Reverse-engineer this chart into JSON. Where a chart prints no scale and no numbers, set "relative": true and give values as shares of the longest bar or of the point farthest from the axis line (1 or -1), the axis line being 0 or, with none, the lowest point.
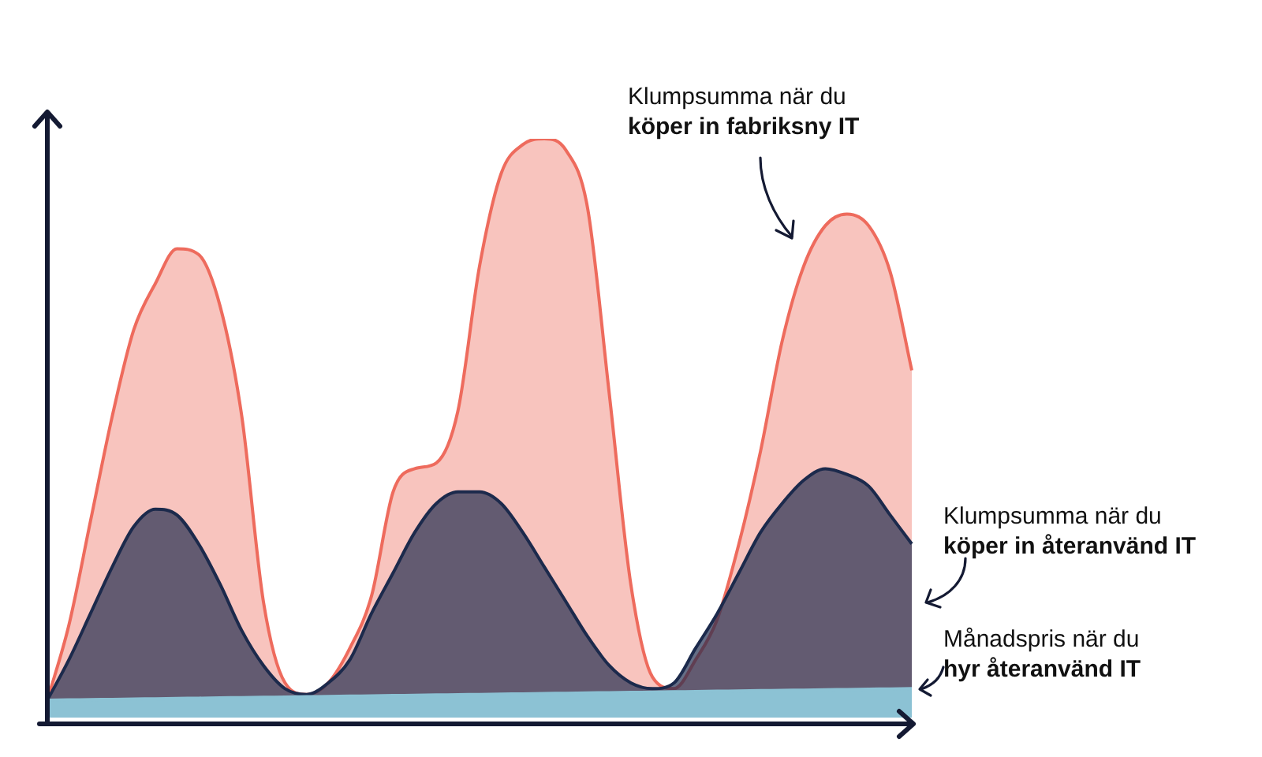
{
  "chart_data": {
    "type": "area",
    "relative": true,
    "legend": false,
    "categories": [
      null,
      null,
      null,
      null,
      null,
      null,
      null,
      null,
      null,
      null,
      null,
      null,
      null,
      null,
      null,
      null,
      null,
      null,
      null,
      null,
      null,
      null,
      null,
      null,
      null,
      null,
      null,
      null,
      null,
      null,
      null,
      null,
      null,
      null,
      null,
      null,
      null,
      null,
      null,
      null,
      null
    ],
    "series": [
      {
        "color": "#ee6b5d",
        "values": [
          0.03,
          0.16,
          0.34,
          0.52,
          0.67,
          0.75,
          0.81,
          0.8,
          0.71,
          0.52,
          0.2,
          0.06,
          0.04,
          0.06,
          0.12,
          0.21,
          0.39,
          0.43,
          0.44,
          0.53,
          0.78,
          0.94,
          0.99,
          1,
          0.98,
          0.88,
          0.56,
          0.23,
          0.07,
          0.05,
          0.1,
          0.17,
          0.3,
          0.46,
          0.65,
          0.78,
          0.85,
          0.87,
          0.85,
          0.77,
          0.6
        ]
      },
      {
        "color": "#1c2a4c",
        "values": [
          0.03,
          0.1,
          0.18,
          0.26,
          0.33,
          0.36,
          0.35,
          0.3,
          0.23,
          0.15,
          0.09,
          0.05,
          0.04,
          0.06,
          0.1,
          0.18,
          0.25,
          0.32,
          0.37,
          0.39,
          0.39,
          0.37,
          0.32,
          0.26,
          0.2,
          0.14,
          0.09,
          0.06,
          0.05,
          0.06,
          0.12,
          0.18,
          0.25,
          0.32,
          0.37,
          0.41,
          0.43,
          0.42,
          0.4,
          0.35,
          0.3
        ]
      },
      {
        "color": "#8cc2d4",
        "values": [
          0.03,
          0.0305,
          0.031,
          0.0315,
          0.032,
          0.0325,
          0.033,
          0.0335,
          0.034,
          0.0345,
          0.035,
          0.0355,
          0.036,
          0.0365,
          0.037,
          0.0375,
          0.038,
          0.0385,
          0.039,
          0.0395,
          0.04,
          0.0405,
          0.041,
          0.0415,
          0.042,
          0.0425,
          0.043,
          0.0435,
          0.044,
          0.0445,
          0.045,
          0.0455,
          0.046,
          0.0465,
          0.047,
          0.0475,
          0.048,
          0.0485,
          0.049,
          0.0495,
          0.05
        ]
      }
    ],
    "annotations": [
      "Klumpsumma när du",
      "köper in fabriksny IT",
      "Klumpsumma när du",
      "köper in återanvänd IT",
      "Månadspris när du",
      "hyr återanvänd IT"
    ]
  }
}
